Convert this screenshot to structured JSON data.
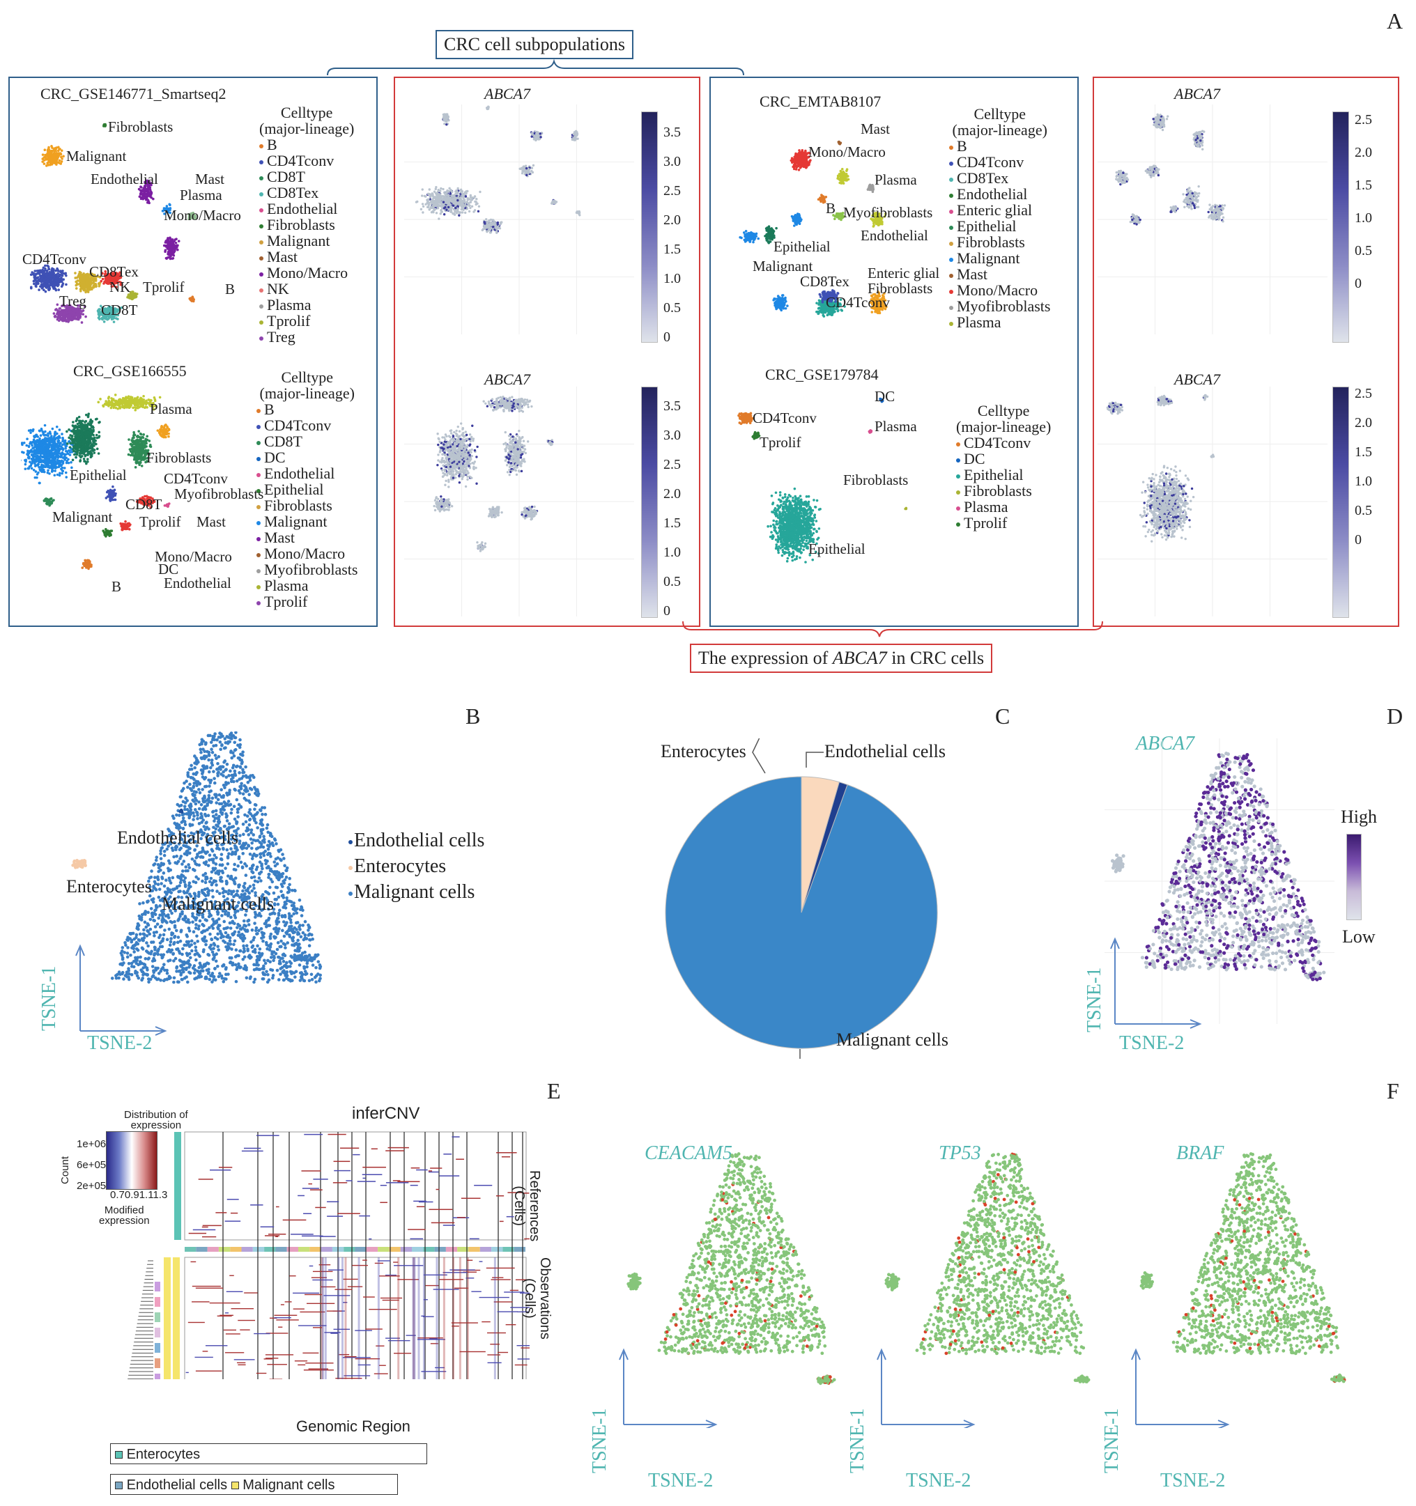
{
  "panel_letters": {
    "a": "A",
    "b": "B",
    "c": "C",
    "d": "D",
    "e": "E",
    "f": "F"
  },
  "top_caption": "CRC cell subpopulations",
  "bottom_caption_prefix": "The expression of ",
  "bottom_caption_gene": "ABCA7",
  "bottom_caption_suffix": " in CRC cells",
  "legend_title_1": "Celltype",
  "legend_title_2": "(major-lineage)",
  "gene": "ABCA7",
  "ds1": {
    "name": "CRC_GSE146771_Smartseq2",
    "legend": [
      "B",
      "CD4Tconv",
      "CD8T",
      "CD8Tex",
      "Endothelial",
      "Fibroblasts",
      "Malignant",
      "Mast",
      "Mono/Macro",
      "NK",
      "Plasma",
      "Tprolif",
      "Treg"
    ],
    "legend_colors": [
      "#e07b2a",
      "#3f51b5",
      "#2e8b57",
      "#4fb5b0",
      "#d84f8f",
      "#2e7d32",
      "#d0a040",
      "#a06030",
      "#7b1fa2",
      "#e57373",
      "#9e9e9e",
      "#aab434",
      "#8e44ad"
    ],
    "labels": [
      "Fibroblasts",
      "Malignant",
      "Endothelial",
      "Mast",
      "Plasma",
      "Mono/Macro",
      "CD4Tconv",
      "CD8Tex",
      "NK",
      "Tprolif",
      "B",
      "Treg",
      "CD8T"
    ],
    "ticks": [
      "3.5",
      "3.0",
      "2.5",
      "2.0",
      "1.5",
      "1.0",
      "0.5",
      "0"
    ]
  },
  "ds2": {
    "name": "CRC_GSE166555",
    "legend": [
      "B",
      "CD4Tconv",
      "CD8T",
      "DC",
      "Endothelial",
      "Epithelial",
      "Fibroblasts",
      "Malignant",
      "Mast",
      "Mono/Macro",
      "Myofibroblasts",
      "Plasma",
      "Tprolif"
    ],
    "legend_colors": [
      "#e07b2a",
      "#3f51b5",
      "#2e8b57",
      "#1565c0",
      "#d84f8f",
      "#2e7d32",
      "#d0a040",
      "#1e88e5",
      "#7b1fa2",
      "#a06030",
      "#9e9e9e",
      "#aab434",
      "#8e44ad"
    ],
    "labels": [
      "Plasma",
      "Fibroblasts",
      "Epithelial",
      "CD4Tconv",
      "Myofibroblasts",
      "CD8T",
      "Tprolif",
      "Mast",
      "Malignant",
      "Mono/Macro",
      "DC",
      "Endothelial",
      "B"
    ],
    "ticks": [
      "3.5",
      "3.0",
      "2.5",
      "2.0",
      "1.5",
      "1.0",
      "0.5",
      "0"
    ]
  },
  "ds3": {
    "name": "CRC_EMTAB8107",
    "legend": [
      "B",
      "CD4Tconv",
      "CD8Tex",
      "Endothelial",
      "Enteric glial",
      "Epithelial",
      "Fibroblasts",
      "Malignant",
      "Mast",
      "Mono/Macro",
      "Myofibroblasts",
      "Plasma"
    ],
    "legend_colors": [
      "#e07b2a",
      "#3f51b5",
      "#4fb5b0",
      "#2e7d32",
      "#d84f8f",
      "#2e8b57",
      "#d0a040",
      "#1e88e5",
      "#a06030",
      "#e53935",
      "#9e9e9e",
      "#aab434"
    ],
    "labels": [
      "Mast",
      "Mono/Macro",
      "Plasma",
      "B",
      "Myofibroblasts",
      "Endothelial",
      "Epithelial",
      "Malignant",
      "Enteric glial",
      "CD8Tex",
      "Fibroblasts",
      "CD4Tconv"
    ],
    "ticks": [
      "2.5",
      "2.0",
      "1.5",
      "1.0",
      "0.5",
      "0"
    ]
  },
  "ds4": {
    "name": "CRC_GSE179784",
    "legend": [
      "CD4Tconv",
      "DC",
      "Epithelial",
      "Fibroblasts",
      "Plasma",
      "Tprolif"
    ],
    "legend_colors": [
      "#e07b2a",
      "#1565c0",
      "#26a69a",
      "#aab434",
      "#d84f8f",
      "#2e7d32"
    ],
    "labels": [
      "DC",
      "CD4Tconv",
      "Plasma",
      "Tprolif",
      "Fibroblasts",
      "Epithelial"
    ],
    "ticks": [
      "2.5",
      "2.0",
      "1.5",
      "1.0",
      "0.5",
      "0"
    ]
  },
  "panel_b": {
    "labels": [
      "Endothelial cells",
      "Enterocytes",
      "Malignant cells"
    ],
    "legend": [
      "Endothelial cells",
      "Enterocytes",
      "Malignant cells"
    ],
    "legend_colors": [
      "#1f4e9c",
      "#f5c9a6",
      "#3b7fc4"
    ],
    "axis_x": "TSNE-2",
    "axis_y": "TSNE-1"
  },
  "chart_data": {
    "type": "pie",
    "title": "",
    "categories": [
      "Malignant cells",
      "Enterocytes",
      "Endothelial cells"
    ],
    "values": [
      94.5,
      4.5,
      1.0
    ],
    "colors": [
      "#3a87c8",
      "#fad9bd",
      "#1f3f8f"
    ]
  },
  "panel_d": {
    "gene": "ABCA7",
    "high": "High",
    "low": "Low",
    "axis_x": "TSNE-2",
    "axis_y": "TSNE-1"
  },
  "panel_e": {
    "title": "inferCNV",
    "hist_title_1": "Distribution of",
    "hist_title_2": "expression",
    "count_label": "Count",
    "hist_yticks": [
      "1e+06",
      "6e+05",
      "2e+05"
    ],
    "hist_xticks": "0.70.91.11.3",
    "modified_1": "Modified",
    "modified_2": "expression",
    "references_1": "References",
    "references_2": "(Cells)",
    "observations_1": "Observations",
    "observations_2": "(Cells)",
    "xlabel": "Genomic Region",
    "legend1": "Enterocytes",
    "legend2a": "Endothelial cells",
    "legend2b": "Malignant cells"
  },
  "panel_f": {
    "genes": [
      "CEACAM5",
      "TP53",
      "BRAF"
    ],
    "axis_x": "TSNE-2",
    "axis_y": "TSNE-1"
  }
}
